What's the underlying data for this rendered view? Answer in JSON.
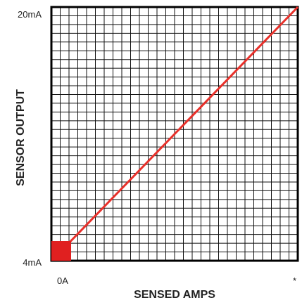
{
  "chart_data": {
    "type": "line",
    "xlabel": "SENSED AMPS",
    "ylabel": "SENSOR OUTPUT",
    "x_tick_labels": [
      "0A",
      "*"
    ],
    "y_tick_labels": [
      "4mA",
      "20mA"
    ],
    "x_range": [
      0,
      1
    ],
    "y_range_mA": [
      4,
      20
    ],
    "grid": true,
    "series": [
      {
        "x": [
          0,
          1
        ],
        "y": [
          4,
          20
        ]
      }
    ],
    "colors": {
      "line": "#e8302a",
      "marker": "#e02020",
      "grid": "#111111",
      "axis": "#000000"
    }
  }
}
